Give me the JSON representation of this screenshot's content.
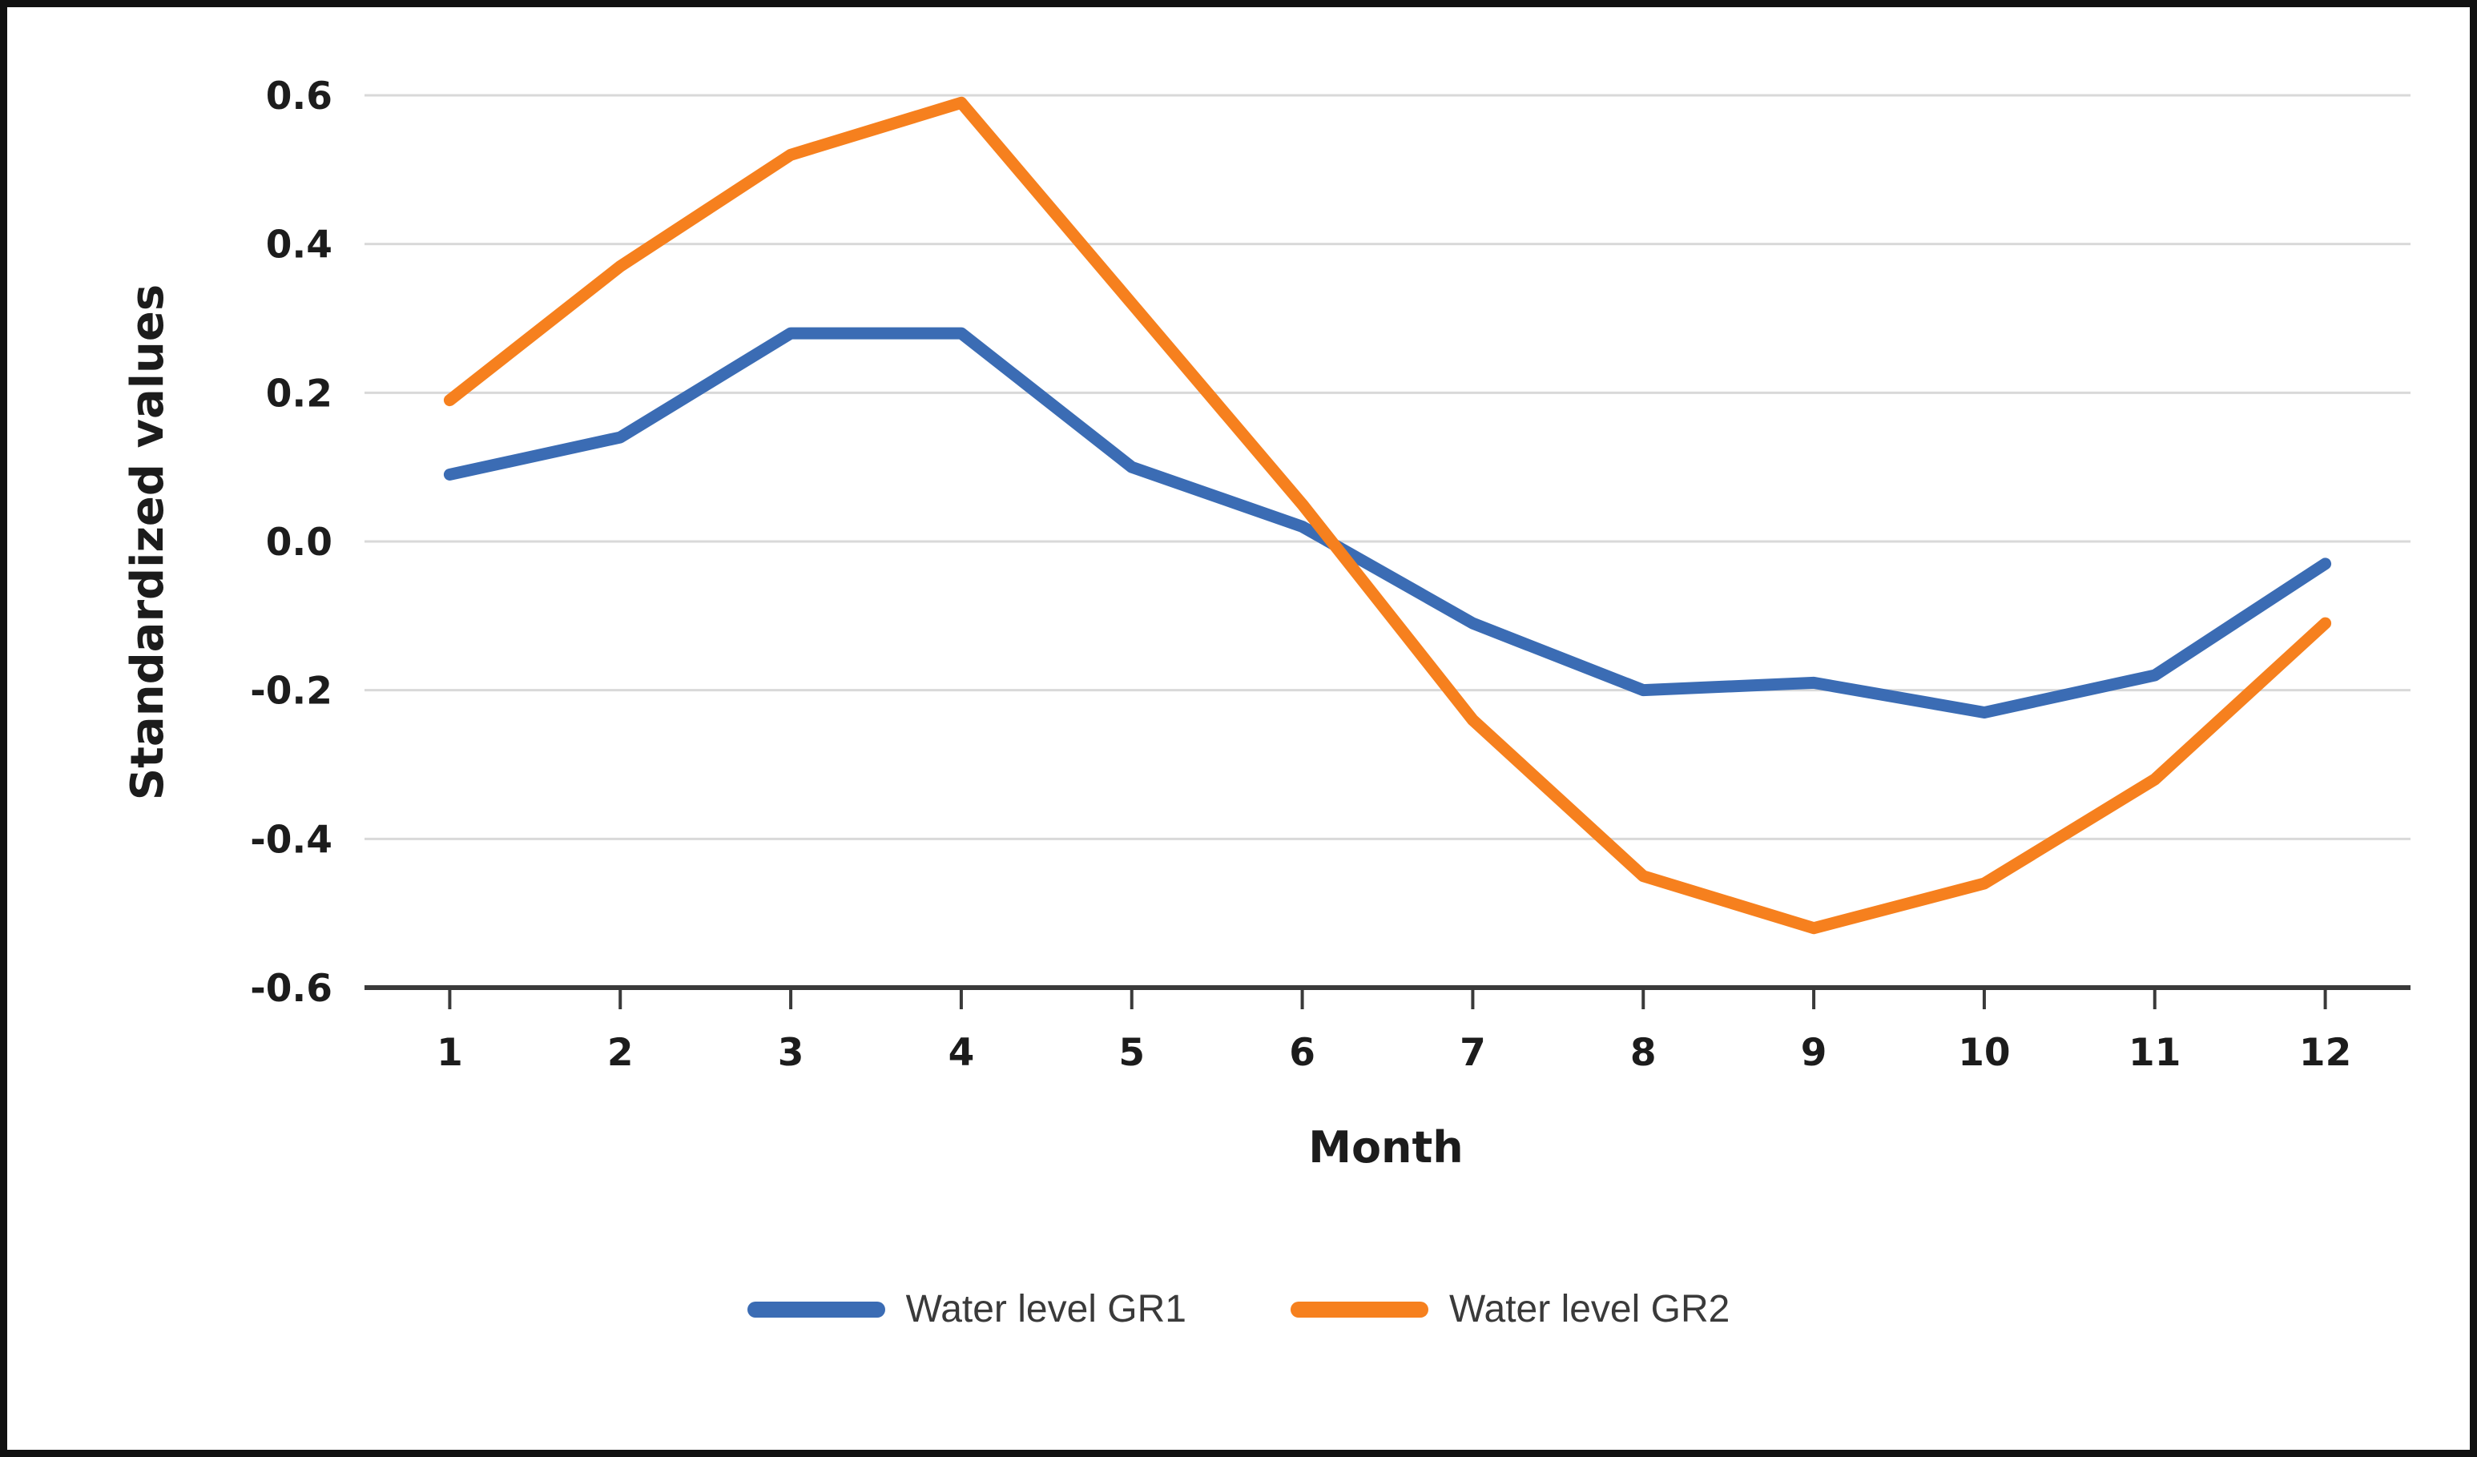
{
  "figure": {
    "background": "#ffffff",
    "border_color": "#111111"
  },
  "chart_data": {
    "type": "line",
    "title": "",
    "xlabel": "Month",
    "ylabel": "Standardized values",
    "x": [
      1,
      2,
      3,
      4,
      5,
      6,
      7,
      8,
      9,
      10,
      11,
      12
    ],
    "x_tick_labels": [
      "1",
      "2",
      "3",
      "4",
      "5",
      "6",
      "7",
      "8",
      "9",
      "10",
      "11",
      "12"
    ],
    "y_ticks": [
      0.6,
      0.4,
      0.2,
      0.0,
      -0.2,
      -0.4,
      -0.6
    ],
    "y_tick_labels": [
      "0.6",
      "0.4",
      "0.2",
      "0.0",
      "-0.2",
      "-0.4",
      "-0.6"
    ],
    "ylim": [
      -0.6,
      0.6
    ],
    "grid": true,
    "legend_position": "bottom",
    "gridline_color": "#d9d9d9",
    "axis_color": "#3a3a3a",
    "series": [
      {
        "name": "Water level GR1",
        "color": "#3B6CB4",
        "values": [
          0.09,
          0.14,
          0.28,
          0.28,
          0.1,
          0.02,
          -0.11,
          -0.2,
          -0.19,
          -0.23,
          -0.18,
          -0.03
        ]
      },
      {
        "name": "Water level GR2",
        "color": "#F6801E",
        "values": [
          0.19,
          0.37,
          0.52,
          0.59,
          0.32,
          0.05,
          -0.24,
          -0.45,
          -0.52,
          -0.46,
          -0.32,
          -0.11
        ]
      }
    ]
  }
}
